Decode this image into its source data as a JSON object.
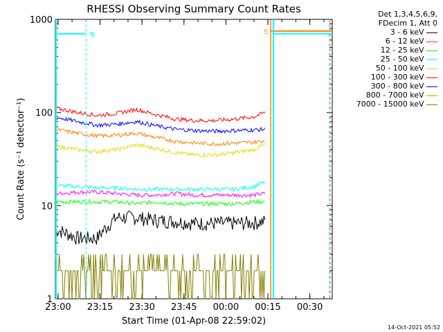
{
  "chart_data": {
    "type": "line",
    "title": "RHESSI Observing Summary Count Rates",
    "xlabel": "Start Time (01-Apr-08 22:59:02)",
    "ylabel": "Count Rate (s⁻¹ detector⁻¹)",
    "yscale": "log",
    "ylim": [
      1,
      1000
    ],
    "xlim": [
      "22:59:02",
      "00:38:00"
    ],
    "x_ticks": [
      "23:00",
      "23:15",
      "23:30",
      "23:45",
      "00:00",
      "00:15",
      "00:30"
    ],
    "y_ticks": [
      "1",
      "10",
      "100",
      "1000"
    ],
    "legend_header": [
      "Det 1,3,4,5,6,9,",
      "FDecim 1, Att 0"
    ],
    "series": [
      {
        "name": "3 - 6 keV",
        "color": "#000000",
        "values": [
          5.5,
          4.5,
          4.5,
          7.5,
          7.5,
          7.0,
          6.8,
          6.5,
          6.5,
          6.5,
          6.6,
          6.8
        ]
      },
      {
        "name": "6 - 12 keV",
        "color": "#ff00ff",
        "values": [
          13.5,
          14.0,
          14.0,
          13.5,
          13.0,
          13.0,
          13.5,
          13.0,
          13.0,
          13.0,
          13.0,
          13.5
        ]
      },
      {
        "name": "12 - 25 keV",
        "color": "#00ff00",
        "values": [
          11.0,
          11.0,
          11.0,
          11.0,
          10.5,
          11.0,
          10.5,
          10.5,
          10.5,
          10.5,
          11.0,
          11.0
        ]
      },
      {
        "name": "25 - 50 keV",
        "color": "#00ffff",
        "values": [
          16.5,
          16.0,
          15.5,
          15.5,
          15.0,
          15.0,
          15.0,
          15.0,
          15.0,
          15.0,
          16.0,
          18.0
        ]
      },
      {
        "name": "50 - 100 keV",
        "color": "#dddd00",
        "values": [
          43,
          40,
          38,
          40,
          45,
          41,
          37,
          35,
          35,
          37,
          40,
          45
        ]
      },
      {
        "name": "100 - 300 keV",
        "color": "#ff0000",
        "values": [
          110,
          100,
          93,
          98,
          108,
          95,
          85,
          82,
          82,
          85,
          90,
          100
        ]
      },
      {
        "name": "300 - 800 keV",
        "color": "#0000ff",
        "values": [
          88,
          80,
          73,
          75,
          80,
          72,
          66,
          64,
          63,
          64,
          65,
          66
        ]
      },
      {
        "name": "800 - 7000 keV",
        "color": "#ff8000",
        "values": [
          65,
          60,
          56,
          57,
          60,
          54,
          49,
          47,
          46,
          47,
          48,
          50
        ]
      },
      {
        "name": "7000 - 15000 keV",
        "color": "#808000",
        "values": [
          2.0,
          2.0,
          2.2,
          2.5,
          2.5,
          2.2,
          2.0,
          2.0,
          2.2,
          2.2,
          2.4,
          2.5
        ]
      }
    ],
    "x": [
      "23:00",
      "23:07",
      "23:14",
      "23:21",
      "23:28",
      "23:35",
      "23:42",
      "23:49",
      "23:56",
      "00:03",
      "00:10",
      "00:14"
    ],
    "annotations": [
      {
        "label": "N",
        "color": "#00ffff",
        "text": "night (eclipse) interval marker"
      },
      {
        "label": "S",
        "color": "#ff8000",
        "text": "SAA interval marker"
      }
    ],
    "timestamp": "14-Oct-2021 05:52"
  }
}
